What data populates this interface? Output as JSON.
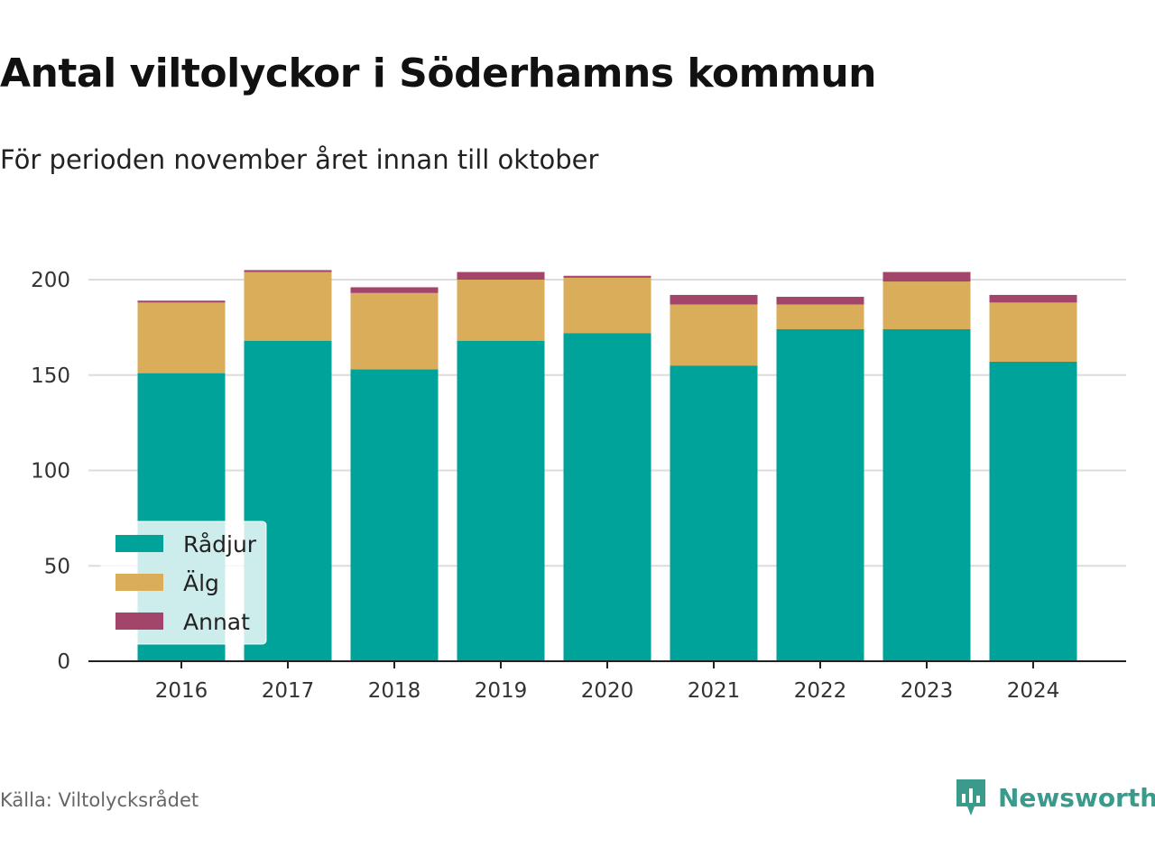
{
  "title": "Antal viltolyckor i Söderhamns kommun",
  "subtitle": "För perioden november året innan till oktober",
  "source": "Källa: Viltolycksrådet",
  "brand": "Newsworthy",
  "colors": {
    "radjur": "#00a39a",
    "alg": "#d9ad59",
    "annat": "#a3456a",
    "grid": "#dcdcdc",
    "axis": "#222222"
  },
  "chart_data": {
    "type": "bar",
    "stacked": true,
    "categories": [
      "2016",
      "2017",
      "2018",
      "2019",
      "2020",
      "2021",
      "2022",
      "2023",
      "2024"
    ],
    "series": [
      {
        "name": "Rådjur",
        "color": "#00a39a",
        "values": [
          151,
          168,
          153,
          168,
          172,
          155,
          174,
          174,
          157
        ]
      },
      {
        "name": "Älg",
        "color": "#d9ad59",
        "values": [
          37,
          36,
          40,
          32,
          29,
          32,
          13,
          25,
          31
        ]
      },
      {
        "name": "Annat",
        "color": "#a3456a",
        "values": [
          1,
          1,
          3,
          4,
          1,
          5,
          4,
          5,
          4
        ]
      }
    ],
    "yticks": [
      0,
      50,
      100,
      150,
      200
    ],
    "ylim": [
      0,
      215
    ],
    "grid": true,
    "legend": "bottom-left"
  }
}
